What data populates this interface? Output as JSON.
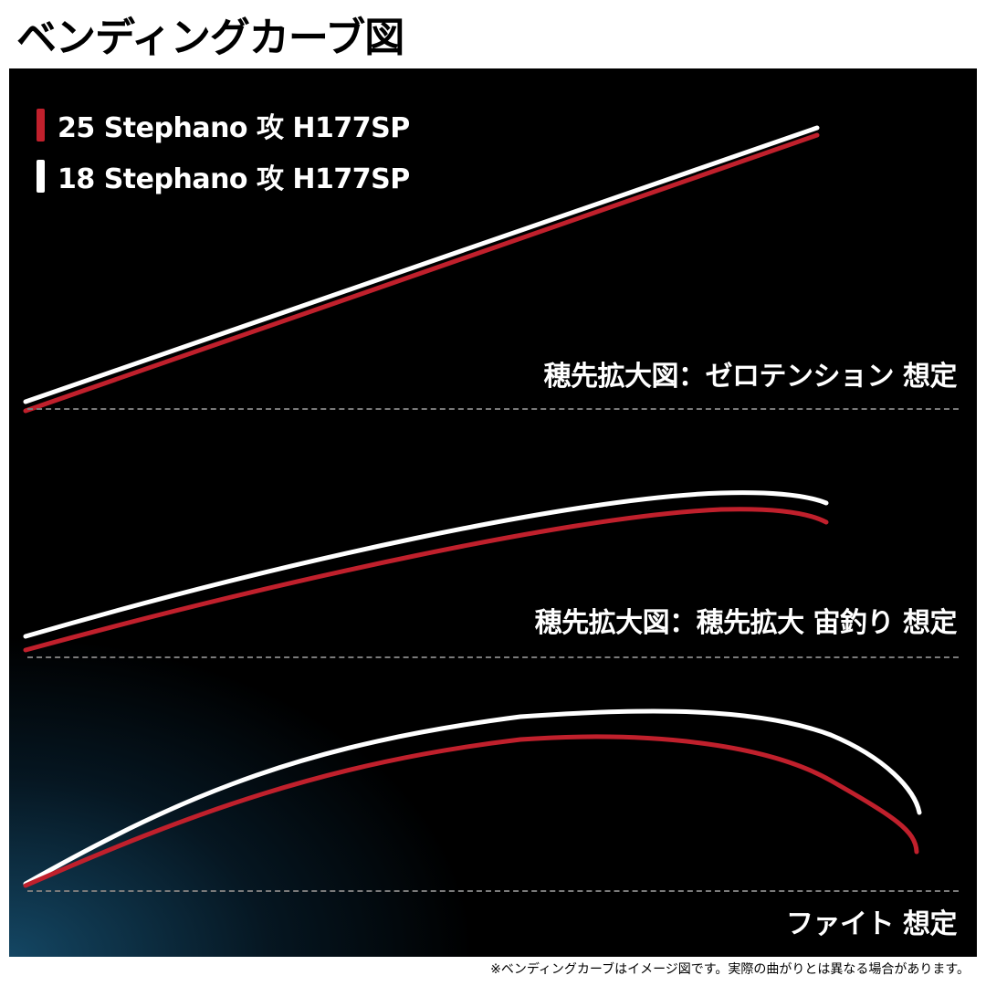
{
  "title": "ベンディングカーブ図",
  "legend": {
    "items": [
      {
        "label": "25 Stephano 攻 H177SP",
        "color": "#c0202c"
      },
      {
        "label": "18 Stephano 攻 H177SP",
        "color": "#ffffff"
      }
    ]
  },
  "panels": [
    {
      "label": "穂先拡大図：ゼロテンション 想定"
    },
    {
      "label": "穂先拡大図：穂先拡大 宙釣り 想定"
    },
    {
      "label": "ファイト 想定"
    }
  ],
  "footnote": "※ベンディングカーブはイメージ図です。実際の曲がりとは異なる場合があります。"
}
